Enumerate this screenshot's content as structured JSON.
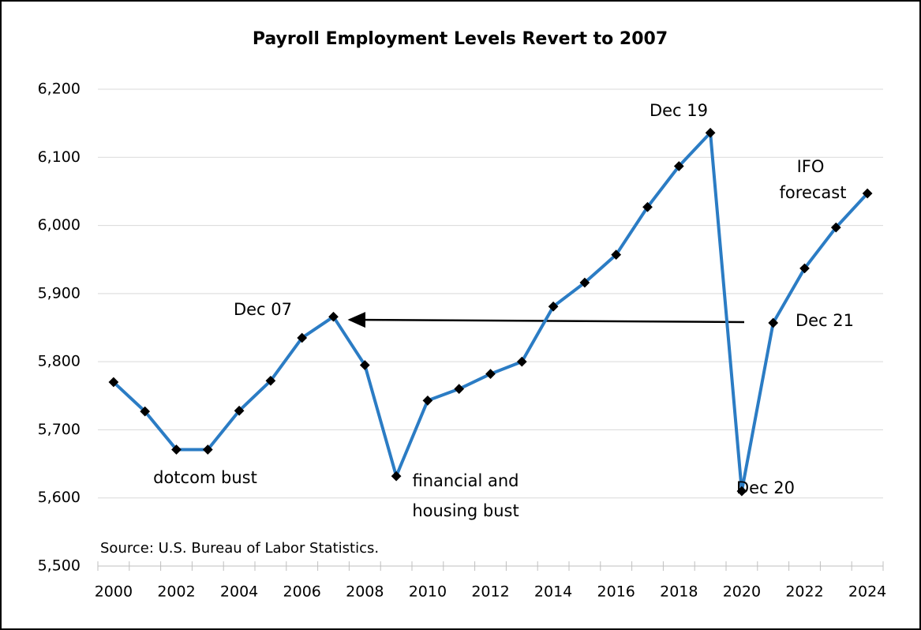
{
  "chart_data": {
    "type": "line",
    "title": "Payroll Employment Levels Revert to 2007",
    "source": "Source: U.S. Bureau of Labor Statistics.",
    "categories": [
      "2000",
      null,
      "2002",
      null,
      "2004",
      null,
      "2006",
      null,
      "2008",
      null,
      "2010",
      null,
      "2012",
      null,
      "2014",
      null,
      "2016",
      null,
      "2018",
      null,
      "2020",
      null,
      "2022",
      null,
      "2024"
    ],
    "series": [
      {
        "name": "Payroll employment",
        "color": "#2b7cc4",
        "values": [
          5770,
          5727,
          5671,
          5671,
          5728,
          5772,
          5835,
          5866,
          5795,
          5632,
          5743,
          5760,
          5782,
          5800,
          5881,
          5916,
          5957,
          6027,
          6087,
          6136,
          5610,
          5857,
          5937,
          5997,
          6047
        ]
      }
    ],
    "ylim": [
      5500,
      6200
    ],
    "yticks": [
      {
        "value": 5500,
        "label": "5,500"
      },
      {
        "value": 5600,
        "label": "5,600"
      },
      {
        "value": 5700,
        "label": "5,700"
      },
      {
        "value": 5800,
        "label": "5,800"
      },
      {
        "value": 5900,
        "label": "5,900"
      },
      {
        "value": 6000,
        "label": "6,000"
      },
      {
        "value": 6100,
        "label": "6,100"
      },
      {
        "value": 6200,
        "label": "6,200"
      }
    ],
    "grid": true,
    "annotations": [
      "dotcom bust",
      "financial and",
      "housing bust",
      "Dec 07",
      "Dec 19",
      "Dec 20",
      "Dec 21",
      "IFO",
      "forecast"
    ]
  }
}
